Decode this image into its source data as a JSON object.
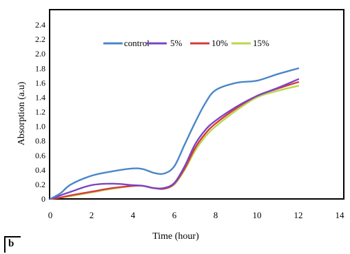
{
  "panel_label": "b",
  "colors": {
    "control": "#4a86c8",
    "5%": "#7b45c4",
    "10%": "#d83a3a",
    "15%": "#b7d84a"
  },
  "chart_data": {
    "type": "line",
    "title": "",
    "xlabel": "Time (hour)",
    "ylabel": "Absorption (a.u)",
    "xlim": [
      0,
      14
    ],
    "ylim": [
      0,
      2.4
    ],
    "xticks": [
      "0",
      "2",
      "4",
      "6",
      "8",
      "10",
      "12",
      "14"
    ],
    "yticks": [
      "0",
      "0.2",
      "0.4",
      "0.6",
      "0.8",
      "1.0",
      "1.2",
      "1.4",
      "1.6",
      "1.8",
      "2.0",
      "2.2",
      "2.4"
    ],
    "grid": false,
    "legend_position": "top-center",
    "series": [
      {
        "name": "control",
        "x": [
          0,
          0.5,
          1,
          2,
          3,
          4,
          4.5,
          5,
          5.5,
          6,
          6.5,
          7,
          7.5,
          8,
          9,
          10,
          11,
          12
        ],
        "y": [
          0,
          0.08,
          0.2,
          0.32,
          0.38,
          0.42,
          0.41,
          0.36,
          0.35,
          0.45,
          0.75,
          1.05,
          1.32,
          1.5,
          1.6,
          1.63,
          1.72,
          1.8
        ]
      },
      {
        "name": "5%",
        "x": [
          0,
          0.5,
          1,
          2,
          3,
          4,
          4.5,
          5,
          5.5,
          6,
          6.5,
          7,
          7.5,
          8,
          9,
          10,
          11,
          12
        ],
        "y": [
          0,
          0.05,
          0.1,
          0.19,
          0.21,
          0.19,
          0.18,
          0.15,
          0.15,
          0.22,
          0.45,
          0.75,
          0.95,
          1.08,
          1.27,
          1.42,
          1.53,
          1.65
        ]
      },
      {
        "name": "10%",
        "x": [
          0,
          0.5,
          1,
          2,
          3,
          4,
          4.5,
          5,
          5.5,
          6,
          6.5,
          7,
          7.5,
          8,
          9,
          10,
          11,
          12
        ],
        "y": [
          0,
          0.02,
          0.05,
          0.1,
          0.15,
          0.18,
          0.18,
          0.15,
          0.14,
          0.21,
          0.42,
          0.7,
          0.9,
          1.04,
          1.25,
          1.42,
          1.52,
          1.61
        ]
      },
      {
        "name": "15%",
        "x": [
          0,
          0.5,
          1,
          2,
          3,
          4,
          4.5,
          5,
          5.5,
          6,
          6.5,
          7,
          7.5,
          8,
          9,
          10,
          11,
          12
        ],
        "y": [
          0,
          0.02,
          0.04,
          0.09,
          0.14,
          0.18,
          0.18,
          0.15,
          0.14,
          0.2,
          0.4,
          0.66,
          0.86,
          1.0,
          1.22,
          1.4,
          1.49,
          1.56
        ]
      }
    ]
  }
}
